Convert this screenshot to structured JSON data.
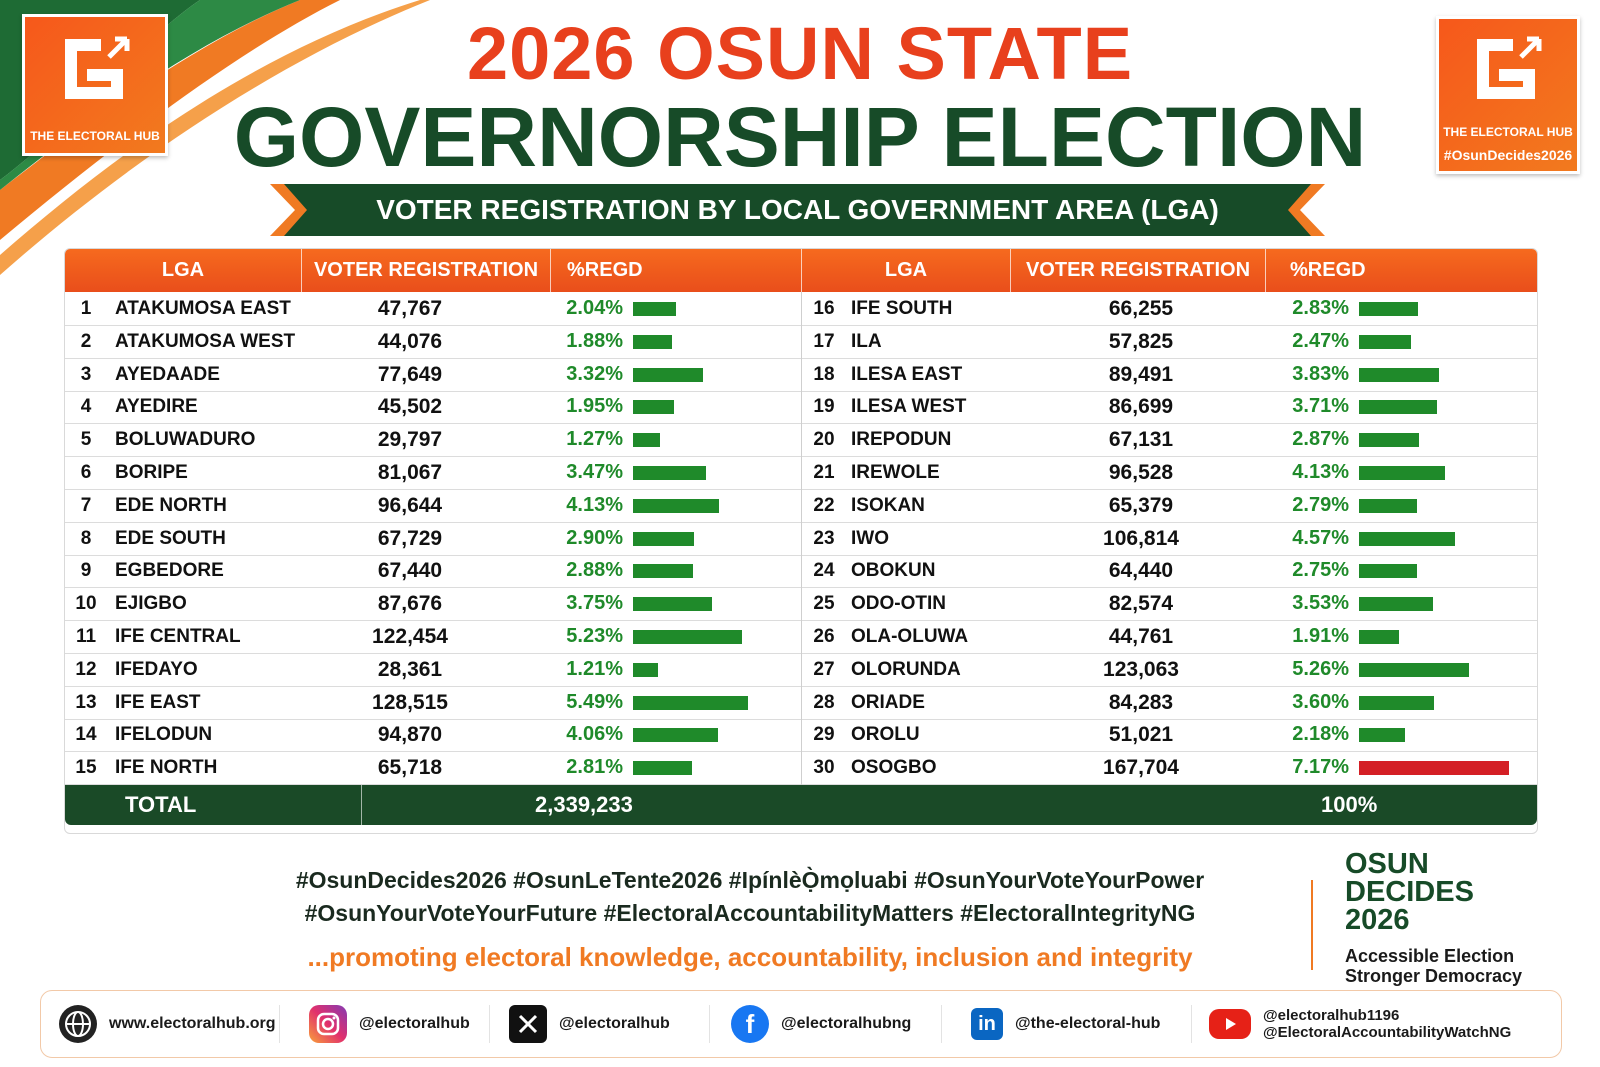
{
  "title_line1": "2026 OSUN STATE",
  "title_line2": "GOVERNORSHIP ELECTION",
  "subtitle": "VOTER REGISTRATION BY LOCAL GOVERNMENT AREA (LGA)",
  "logo": {
    "name": "THE ELECTORAL HUB",
    "hashtag": "#OsunDecides2026"
  },
  "colors": {
    "orange": "#f0561d",
    "green": "#1f8a2a",
    "dark_green": "#174b28",
    "red": "#d41f25"
  },
  "table": {
    "headers": {
      "lga": "LGA",
      "reg": "VOTER REGISTRATION",
      "pct": "%REGD"
    },
    "total_label": "TOTAL",
    "total_value": "2,339,233",
    "total_pct": "100%"
  },
  "chart_data": {
    "type": "table",
    "columns": [
      "#",
      "LGA",
      "VOTER REGISTRATION",
      "%REGD"
    ],
    "rows": [
      {
        "n": "1",
        "lga": "ATAKUMOSA EAST",
        "reg": "47,767",
        "pct": 2.04
      },
      {
        "n": "2",
        "lga": "ATAKUMOSA WEST",
        "reg": "44,076",
        "pct": 1.88
      },
      {
        "n": "3",
        "lga": "AYEDAADE",
        "reg": "77,649",
        "pct": 3.32
      },
      {
        "n": "4",
        "lga": "AYEDIRE",
        "reg": "45,502",
        "pct": 1.95
      },
      {
        "n": "5",
        "lga": "BOLUWADURO",
        "reg": "29,797",
        "pct": 1.27
      },
      {
        "n": "6",
        "lga": "BORIPE",
        "reg": "81,067",
        "pct": 3.47
      },
      {
        "n": "7",
        "lga": "EDE NORTH",
        "reg": "96,644",
        "pct": 4.13
      },
      {
        "n": "8",
        "lga": "EDE SOUTH",
        "reg": "67,729",
        "pct": 2.9
      },
      {
        "n": "9",
        "lga": "EGBEDORE",
        "reg": "67,440",
        "pct": 2.88
      },
      {
        "n": "10",
        "lga": "EJIGBO",
        "reg": "87,676",
        "pct": 3.75
      },
      {
        "n": "11",
        "lga": "IFE CENTRAL",
        "reg": "122,454",
        "pct": 5.23
      },
      {
        "n": "12",
        "lga": "IFEDAYO",
        "reg": "28,361",
        "pct": 1.21
      },
      {
        "n": "13",
        "lga": "IFE EAST",
        "reg": "128,515",
        "pct": 5.49
      },
      {
        "n": "14",
        "lga": "IFELODUN",
        "reg": "94,870",
        "pct": 4.06
      },
      {
        "n": "15",
        "lga": "IFE NORTH",
        "reg": "65,718",
        "pct": 2.81
      },
      {
        "n": "16",
        "lga": "IFE SOUTH",
        "reg": "66,255",
        "pct": 2.83
      },
      {
        "n": "17",
        "lga": "ILA",
        "reg": "57,825",
        "pct": 2.47
      },
      {
        "n": "18",
        "lga": "ILESA EAST",
        "reg": "89,491",
        "pct": 3.83
      },
      {
        "n": "19",
        "lga": "ILESA WEST",
        "reg": "86,699",
        "pct": 3.71
      },
      {
        "n": "20",
        "lga": "IREPODUN",
        "reg": "67,131",
        "pct": 2.87
      },
      {
        "n": "21",
        "lga": "IREWOLE",
        "reg": "96,528",
        "pct": 4.13
      },
      {
        "n": "22",
        "lga": "ISOKAN",
        "reg": "65,379",
        "pct": 2.79
      },
      {
        "n": "23",
        "lga": "IWO",
        "reg": "106,814",
        "pct": 4.57
      },
      {
        "n": "24",
        "lga": "OBOKUN",
        "reg": "64,440",
        "pct": 2.75
      },
      {
        "n": "25",
        "lga": "ODO-OTIN",
        "reg": "82,574",
        "pct": 3.53
      },
      {
        "n": "26",
        "lga": "OLA-OLUWA",
        "reg": "44,761",
        "pct": 1.91
      },
      {
        "n": "27",
        "lga": "OLORUNDA",
        "reg": "123,063",
        "pct": 5.26
      },
      {
        "n": "28",
        "lga": "ORIADE",
        "reg": "84,283",
        "pct": 3.6
      },
      {
        "n": "29",
        "lga": "OROLU",
        "reg": "51,021",
        "pct": 2.18
      },
      {
        "n": "30",
        "lga": "OSOGBO",
        "reg": "167,704",
        "pct": 7.17
      }
    ],
    "highlight_max_color": "#d41f25"
  },
  "hashtags_line1": "#OsunDecides2026  #OsunLeTente2026  #IpínlèỌ̀mọluabi #OsunYourVoteYourPower",
  "hashtags_line2": "#OsunYourVoteYourFuture  #ElectoralAccountabilityMatters  #ElectoralIntegrityNG",
  "tagline": "...promoting  electoral  knowledge, accountability, inclusion and integrity",
  "badge": {
    "l1": "OSUN",
    "l2": "DECIDES",
    "l3": "2026",
    "sub1": "Accessible Election",
    "sub2": "Stronger Democracy"
  },
  "footer": {
    "website": "www.electoralhub.org",
    "instagram": "@electoralhub",
    "x": "@electoralhub",
    "facebook": "@electoralhubng",
    "linkedin": "@the-electoral-hub",
    "youtube1": "@electoralhub1196",
    "youtube2": "@ElectoralAccountabilityWatchNG"
  }
}
